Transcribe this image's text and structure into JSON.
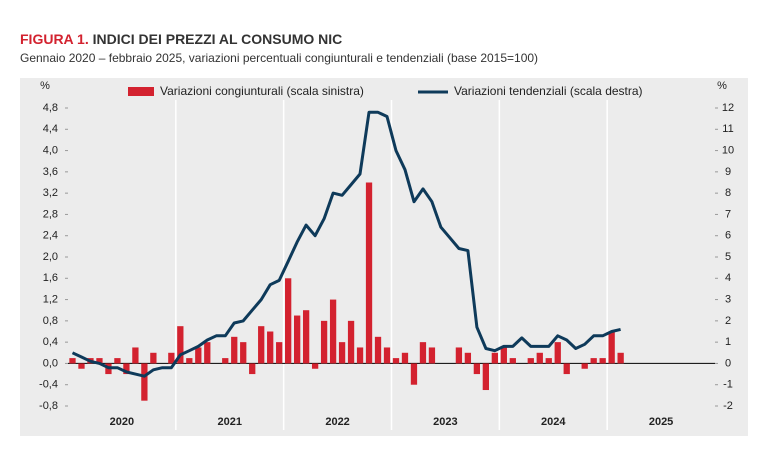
{
  "chart_data": {
    "type": "bar+line",
    "title_prefix": "FIGURA 1.",
    "title": "INDICI DEI PREZZI AL CONSUMO NIC",
    "subtitle": "Gennaio 2020 – febbraio 2025, variazioni percentuali congiunturali e tendenziali (base 2015=100)",
    "y_unit": "%",
    "y2_unit": "%",
    "year_labels": [
      "2020",
      "2021",
      "2022",
      "2023",
      "2024",
      "2025"
    ],
    "categories": [
      null,
      null,
      null,
      null,
      null,
      null,
      null,
      null,
      null,
      null,
      null,
      null,
      null,
      null,
      null,
      null,
      null,
      null,
      null,
      null,
      null,
      null,
      null,
      null,
      null,
      null,
      null,
      null,
      null,
      null,
      null,
      null,
      null,
      null,
      null,
      null,
      null,
      null,
      null,
      null,
      null,
      null,
      null,
      null,
      null,
      null,
      null,
      null,
      null,
      null,
      null,
      null,
      null,
      null,
      null,
      null,
      null,
      null,
      null,
      null,
      null,
      null
    ],
    "series": [
      {
        "name": "Variazioni congiunturali (scala sinistra)",
        "color": "#d3222f",
        "kind": "bar",
        "axis": "y",
        "values": [
          0.1,
          -0.1,
          0.1,
          0.1,
          -0.2,
          0.1,
          -0.2,
          0.3,
          -0.7,
          0.2,
          0.0,
          0.2,
          0.7,
          0.1,
          0.3,
          0.4,
          0.0,
          0.1,
          0.5,
          0.4,
          -0.2,
          0.7,
          0.6,
          0.4,
          1.6,
          0.9,
          1.0,
          -0.1,
          0.8,
          1.2,
          0.4,
          0.8,
          0.3,
          3.4,
          0.5,
          0.3,
          0.1,
          0.2,
          -0.4,
          0.4,
          0.3,
          0.0,
          0.0,
          0.3,
          0.2,
          -0.2,
          -0.5,
          0.2,
          0.3,
          0.1,
          0.0,
          0.1,
          0.2,
          0.1,
          0.4,
          -0.2,
          0.0,
          -0.1,
          0.1,
          0.1,
          0.6,
          0.2
        ]
      },
      {
        "name": "Variazioni tendenziali (scala destra)",
        "color": "#0e3a5a",
        "kind": "line",
        "axis": "y2",
        "values": [
          0.5,
          0.3,
          0.1,
          0.0,
          -0.2,
          -0.2,
          -0.4,
          -0.5,
          -0.6,
          -0.3,
          -0.2,
          -0.2,
          0.4,
          0.6,
          0.8,
          1.1,
          1.3,
          1.3,
          1.9,
          2.0,
          2.5,
          3.0,
          3.7,
          3.9,
          4.8,
          5.7,
          6.5,
          6.0,
          6.8,
          8.0,
          7.9,
          8.4,
          8.9,
          11.8,
          11.8,
          11.6,
          10.0,
          9.1,
          7.6,
          8.2,
          7.6,
          6.4,
          5.9,
          5.4,
          5.3,
          1.7,
          0.7,
          0.6,
          0.8,
          0.8,
          1.2,
          0.8,
          0.8,
          0.8,
          1.3,
          1.1,
          0.7,
          0.9,
          1.3,
          1.3,
          1.5,
          1.6
        ]
      }
    ],
    "ylim": [
      -0.8,
      4.8
    ],
    "yticks": [
      {
        "value": -0.8,
        "label": "-0,8"
      },
      {
        "value": -0.4,
        "label": "-0,4"
      },
      {
        "value": 0,
        "label": "0,0"
      },
      {
        "value": 0.4,
        "label": "0,4"
      },
      {
        "value": 0.8,
        "label": "0,8"
      },
      {
        "value": 1.2,
        "label": "1,2"
      },
      {
        "value": 1.6,
        "label": "1,6"
      },
      {
        "value": 2.0,
        "label": "2,0"
      },
      {
        "value": 2.4,
        "label": "2,4"
      },
      {
        "value": 2.8,
        "label": "2,8"
      },
      {
        "value": 3.2,
        "label": "3,2"
      },
      {
        "value": 3.6,
        "label": "3,6"
      },
      {
        "value": 4.0,
        "label": "4,0"
      },
      {
        "value": 4.4,
        "label": "4,4"
      },
      {
        "value": 4.8,
        "label": "4,8"
      }
    ],
    "y2lim": [
      -2,
      12
    ],
    "y2ticks": [
      -2,
      -1,
      0,
      1,
      2,
      3,
      4,
      5,
      6,
      7,
      8,
      9,
      10,
      11,
      12
    ]
  }
}
